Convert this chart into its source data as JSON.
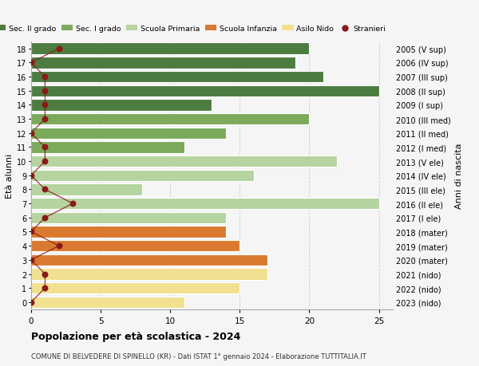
{
  "ages": [
    18,
    17,
    16,
    15,
    14,
    13,
    12,
    11,
    10,
    9,
    8,
    7,
    6,
    5,
    4,
    3,
    2,
    1,
    0
  ],
  "right_labels": [
    "2005 (V sup)",
    "2006 (IV sup)",
    "2007 (III sup)",
    "2008 (II sup)",
    "2009 (I sup)",
    "2010 (III med)",
    "2011 (II med)",
    "2012 (I med)",
    "2013 (V ele)",
    "2014 (IV ele)",
    "2015 (III ele)",
    "2016 (II ele)",
    "2017 (I ele)",
    "2018 (mater)",
    "2019 (mater)",
    "2020 (mater)",
    "2021 (nido)",
    "2022 (nido)",
    "2023 (nido)"
  ],
  "bar_values": [
    20,
    19,
    21,
    25,
    13,
    20,
    14,
    11,
    22,
    16,
    8,
    25,
    14,
    14,
    15,
    17,
    17,
    15,
    11
  ],
  "bar_colors": [
    "#4d7c40",
    "#4d7c40",
    "#4d7c40",
    "#4d7c40",
    "#4d7c40",
    "#7aaa5a",
    "#7aaa5a",
    "#7aaa5a",
    "#b5d4a0",
    "#b5d4a0",
    "#b5d4a0",
    "#b5d4a0",
    "#b5d4a0",
    "#d97a30",
    "#d97a30",
    "#d97a30",
    "#f0e090",
    "#f0e090",
    "#f0e090"
  ],
  "stranieri_x": [
    2,
    0,
    1,
    1,
    1,
    1,
    0,
    1,
    1,
    0,
    1,
    3,
    1,
    0,
    2,
    0,
    1,
    1,
    0
  ],
  "title": "Popolazione per età scolastica - 2024",
  "subtitle": "COMUNE DI BELVEDERE DI SPINELLO (KR) - Dati ISTAT 1° gennaio 2024 - Elaborazione TUTTITALIA.IT",
  "ylabel_left": "Età alunni",
  "ylabel_right": "Anni di nascita",
  "xlim": [
    0,
    26
  ],
  "ylim": [
    -0.5,
    18.5
  ],
  "xticks": [
    0,
    5,
    10,
    15,
    20,
    25
  ],
  "legend_labels": [
    "Sec. II grado",
    "Sec. I grado",
    "Scuola Primaria",
    "Scuola Infanzia",
    "Asilo Nido",
    "Stranieri"
  ],
  "legend_colors": [
    "#4d7c40",
    "#7aaa5a",
    "#b5d4a0",
    "#d97a30",
    "#f0e090",
    "#8b0000"
  ],
  "bg_color": "#f5f5f5",
  "grid_color": "#cccccc",
  "bar_height": 0.82
}
